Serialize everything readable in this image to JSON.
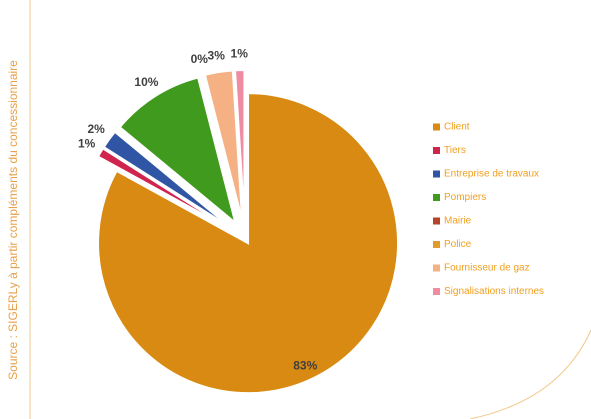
{
  "chart_data": {
    "type": "pie",
    "source": "Source : SIGERLy à partir compléments du concessionnaire",
    "categories": [
      "Client",
      "Tiers",
      "Entreprise de travaux",
      "Pompiers",
      "Mairie",
      "Police",
      "Fournisseur de gaz",
      "Signalisations internes"
    ],
    "values": [
      83,
      1,
      2,
      10,
      0,
      0,
      3,
      1
    ],
    "value_labels": [
      "83%",
      "1%",
      "2%",
      "10%",
      "0%",
      null,
      "3%",
      "1%"
    ],
    "colors": [
      "#d98a12",
      "#d0244e",
      "#2f55a4",
      "#3f9a1e",
      "#b5452a",
      "#e39a2a",
      "#f5b184",
      "#f08ca2"
    ],
    "legend": "right"
  }
}
